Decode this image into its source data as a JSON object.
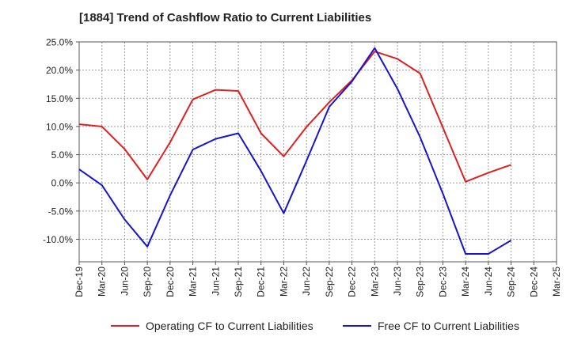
{
  "chart_data": {
    "type": "line",
    "title": "[1884]  Trend of Cashflow Ratio to Current Liabilities",
    "xlabel": "",
    "ylabel": "",
    "ylim": [
      -14,
      25
    ],
    "yticks": [
      "25.0%",
      "20.0%",
      "15.0%",
      "10.0%",
      "5.0%",
      "0.0%",
      "-5.0%",
      "-10.0%"
    ],
    "ytick_values": [
      25,
      20,
      15,
      10,
      5,
      0,
      -5,
      -10
    ],
    "grid": true,
    "legend_position": "bottom",
    "x": [
      "Dec-19",
      "Mar-20",
      "Jun-20",
      "Sep-20",
      "Dec-20",
      "Mar-21",
      "Jun-21",
      "Sep-21",
      "Dec-21",
      "Mar-22",
      "Jun-22",
      "Sep-22",
      "Dec-22",
      "Mar-23",
      "Jun-23",
      "Sep-23",
      "Dec-23",
      "Mar-24",
      "Jun-24",
      "Sep-24",
      "Dec-24",
      "Mar-25"
    ],
    "series": [
      {
        "name": "Operating CF to Current Liabilities",
        "color": "#e02020",
        "values": [
          10.4,
          10.0,
          6.0,
          0.6,
          7.2,
          14.8,
          16.5,
          16.3,
          8.8,
          4.7,
          9.9,
          14.3,
          18.2,
          23.3,
          22.0,
          19.4,
          9.8,
          0.2,
          1.8,
          3.2,
          null,
          null
        ]
      },
      {
        "name": "Free CF to Current Liabilities",
        "color": "#1515d0",
        "values": [
          2.4,
          -0.4,
          -6.5,
          -11.3,
          -2.2,
          5.9,
          7.8,
          8.8,
          2.1,
          -5.4,
          3.9,
          13.5,
          18.0,
          23.9,
          16.7,
          8.1,
          -1.9,
          -12.6,
          -12.6,
          -10.2,
          null,
          null
        ]
      }
    ]
  }
}
